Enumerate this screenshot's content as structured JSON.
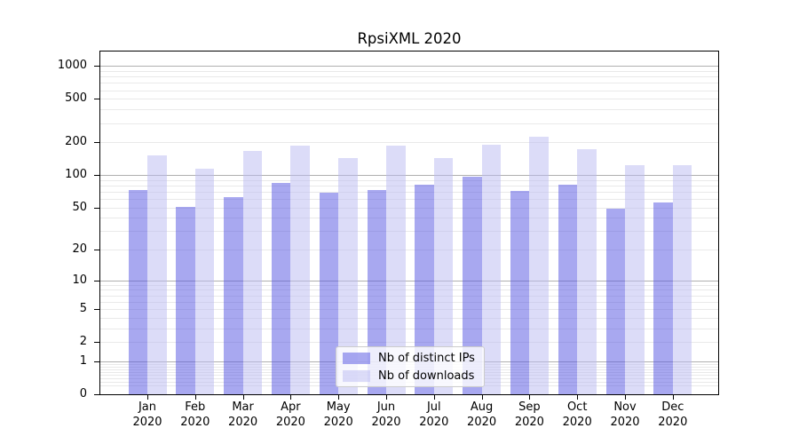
{
  "title": "RpsiXML 2020",
  "chart_data": {
    "type": "bar",
    "title": "RpsiXML 2020",
    "y_scale": "log1p (axis positions follow log10(value+1), 0 at baseline)",
    "categories": [
      "Jan 2020",
      "Feb 2020",
      "Mar 2020",
      "Apr 2020",
      "May 2020",
      "Jun 2020",
      "Jul 2020",
      "Aug 2020",
      "Sep 2020",
      "Oct 2020",
      "Nov 2020",
      "Dec 2020"
    ],
    "series": [
      {
        "name": "Nb of distinct IPs",
        "color": "rgba(81,81,226,0.5)",
        "color_flat": "#a8a8f0",
        "values": [
          72,
          51,
          62,
          84,
          68,
          72,
          81,
          96,
          71,
          82,
          49,
          56
        ]
      },
      {
        "name": "Nb of downloads",
        "color": "rgba(185,185,242,0.5)",
        "color_flat": "#dcdcf8",
        "values": [
          151,
          114,
          168,
          188,
          142,
          188,
          142,
          191,
          225,
          172,
          124,
          123
        ]
      }
    ],
    "y_ticks": [
      1000,
      500,
      200,
      100,
      50,
      20,
      10,
      5,
      2,
      1,
      0
    ],
    "y_major_gridlines": [
      1,
      10,
      100,
      1000
    ],
    "ylim": [
      0,
      1380
    ],
    "xlabel": "",
    "ylabel": "",
    "grid": true,
    "legend_position": "lower center"
  },
  "colors": {
    "major_grid": "#b0b0b0",
    "minor_grid": "#e9e9e9",
    "spine": "#000000",
    "legend_border": "#cccccc",
    "legend_bg": "rgba(255,255,255,0.8)"
  }
}
